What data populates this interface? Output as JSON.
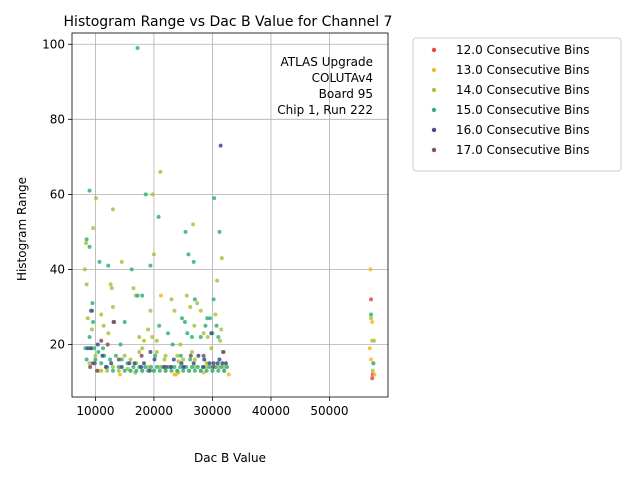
{
  "chart_data": {
    "type": "scatter",
    "title": "Histogram Range vs Dac B Value for Channel 7",
    "xlabel": "Dac B Value",
    "ylabel": "Histogram Range",
    "xlim": [
      6000,
      60000
    ],
    "ylim": [
      6,
      103
    ],
    "xticks": [
      10000,
      20000,
      30000,
      40000,
      50000
    ],
    "xtick_labels": [
      "10000",
      "20000",
      "30000",
      "40000",
      "50000"
    ],
    "yticks": [
      20,
      40,
      60,
      80,
      100
    ],
    "ytick_labels": [
      "20",
      "40",
      "60",
      "80",
      "100"
    ],
    "grid": true,
    "legend_position": "outside-upper-right",
    "annotation": [
      "ATLAS Upgrade",
      "COLUTAv4",
      "Board 95",
      "Chip 1, Run 222"
    ],
    "series": [
      {
        "name": "12.0 Consecutive Bins",
        "color": "#e8474a",
        "points": [
          [
            57100,
            32
          ],
          [
            57300,
            11
          ],
          [
            57400,
            12
          ]
        ]
      },
      {
        "name": "13.0 Consecutive Bins",
        "color": "#f2b934",
        "points": [
          [
            57000,
            40
          ],
          [
            57300,
            26
          ],
          [
            57100,
            16
          ],
          [
            56900,
            19
          ],
          [
            57500,
            15
          ],
          [
            57700,
            12
          ],
          [
            21200,
            33
          ],
          [
            23500,
            12
          ],
          [
            23800,
            12
          ],
          [
            24200,
            12.5
          ],
          [
            14200,
            12
          ],
          [
            28500,
            12.5
          ],
          [
            32800,
            12
          ],
          [
            10500,
            13
          ]
        ]
      },
      {
        "name": "14.0 Consecutive Bins",
        "color": "#a9c340",
        "points": [
          [
            8400,
            47
          ],
          [
            9600,
            51
          ],
          [
            10100,
            59
          ],
          [
            13000,
            56
          ],
          [
            14500,
            42
          ],
          [
            20000,
            44
          ],
          [
            21100,
            66
          ],
          [
            26700,
            52
          ],
          [
            31600,
            43
          ],
          [
            30800,
            37
          ],
          [
            57100,
            27
          ],
          [
            57300,
            21
          ],
          [
            57600,
            21
          ],
          [
            57400,
            13
          ],
          [
            8200,
            40
          ],
          [
            8500,
            36
          ],
          [
            8700,
            27
          ],
          [
            9400,
            24
          ],
          [
            11000,
            28
          ],
          [
            11400,
            25
          ],
          [
            12200,
            23
          ],
          [
            12600,
            36
          ],
          [
            12800,
            35
          ],
          [
            13000,
            30
          ],
          [
            16500,
            35
          ],
          [
            16900,
            33
          ],
          [
            17500,
            22
          ],
          [
            18300,
            21
          ],
          [
            19000,
            24
          ],
          [
            19400,
            29
          ],
          [
            19700,
            22
          ],
          [
            20500,
            21
          ],
          [
            23000,
            32
          ],
          [
            23500,
            29
          ],
          [
            24500,
            20
          ],
          [
            25600,
            33
          ],
          [
            26200,
            30
          ],
          [
            26900,
            25
          ],
          [
            27400,
            31
          ],
          [
            28000,
            29
          ],
          [
            28500,
            23
          ],
          [
            29200,
            22
          ],
          [
            29800,
            19
          ],
          [
            30500,
            28
          ],
          [
            31300,
            21
          ],
          [
            31500,
            24
          ],
          [
            18000,
            19
          ],
          [
            20500,
            18
          ],
          [
            22000,
            17
          ],
          [
            24000,
            17
          ],
          [
            25000,
            16
          ],
          [
            27000,
            16
          ],
          [
            29000,
            15
          ],
          [
            31000,
            14
          ],
          [
            32000,
            14
          ],
          [
            15000,
            17
          ],
          [
            16000,
            16
          ],
          [
            17000,
            15
          ],
          [
            13000,
            14
          ],
          [
            11000,
            13
          ],
          [
            12000,
            13
          ],
          [
            14000,
            13
          ],
          [
            16000,
            13
          ],
          [
            18000,
            13
          ],
          [
            20000,
            13
          ],
          [
            22000,
            13
          ],
          [
            24000,
            13
          ],
          [
            26000,
            13
          ],
          [
            28000,
            13
          ],
          [
            30000,
            13
          ],
          [
            32000,
            13
          ],
          [
            9000,
            15
          ],
          [
            10000,
            17
          ],
          [
            19000,
            14
          ],
          [
            21000,
            14
          ],
          [
            23000,
            14
          ],
          [
            25000,
            14
          ],
          [
            27000,
            14
          ],
          [
            29000,
            14
          ],
          [
            17500,
            18
          ],
          [
            21800,
            16
          ],
          [
            19800,
            60
          ],
          [
            16800,
            12.5
          ],
          [
            15500,
            13.5
          ],
          [
            26500,
            18
          ],
          [
            24200,
            15.5
          ]
        ]
      },
      {
        "name": "15.0 Consecutive Bins",
        "color": "#34b37a",
        "points": [
          [
            17200,
            99
          ],
          [
            9000,
            61
          ],
          [
            8500,
            48
          ],
          [
            9000,
            46
          ],
          [
            10700,
            42
          ],
          [
            12200,
            41
          ],
          [
            18600,
            60
          ],
          [
            20800,
            54
          ],
          [
            25400,
            50
          ],
          [
            25900,
            44
          ],
          [
            26800,
            42
          ],
          [
            30300,
            59
          ],
          [
            31200,
            50
          ],
          [
            30200,
            32
          ],
          [
            57100,
            28
          ],
          [
            57500,
            15
          ],
          [
            9200,
            29
          ],
          [
            9500,
            31
          ],
          [
            9600,
            26
          ],
          [
            16200,
            40
          ],
          [
            17200,
            33
          ],
          [
            19400,
            41
          ],
          [
            24800,
            27
          ],
          [
            25300,
            26
          ],
          [
            25700,
            23
          ],
          [
            26500,
            22
          ],
          [
            27000,
            32
          ],
          [
            28800,
            25
          ],
          [
            29100,
            27
          ],
          [
            29600,
            27
          ],
          [
            30700,
            25
          ],
          [
            31000,
            22
          ],
          [
            9000,
            22
          ],
          [
            9800,
            19
          ],
          [
            10500,
            18
          ],
          [
            11500,
            17
          ],
          [
            12500,
            16
          ],
          [
            13500,
            17
          ],
          [
            14500,
            16
          ],
          [
            15500,
            15
          ],
          [
            16500,
            14
          ],
          [
            17500,
            14
          ],
          [
            18500,
            14
          ],
          [
            19500,
            14
          ],
          [
            20500,
            14
          ],
          [
            21500,
            14
          ],
          [
            22500,
            14
          ],
          [
            23500,
            14
          ],
          [
            24500,
            14
          ],
          [
            25500,
            14
          ],
          [
            26500,
            14
          ],
          [
            27500,
            14
          ],
          [
            28500,
            14
          ],
          [
            29500,
            14
          ],
          [
            30500,
            14
          ],
          [
            31500,
            14
          ],
          [
            32500,
            14
          ],
          [
            8500,
            16
          ],
          [
            10000,
            16
          ],
          [
            11000,
            15
          ],
          [
            12000,
            14
          ],
          [
            13000,
            13
          ],
          [
            14000,
            14
          ],
          [
            15000,
            13
          ],
          [
            16000,
            13
          ],
          [
            17000,
            13
          ],
          [
            18000,
            13
          ],
          [
            19000,
            13
          ],
          [
            20000,
            13
          ],
          [
            21000,
            13
          ],
          [
            22000,
            13
          ],
          [
            23000,
            13
          ],
          [
            24000,
            13
          ],
          [
            25000,
            13
          ],
          [
            26000,
            13
          ],
          [
            27000,
            13
          ],
          [
            28000,
            13
          ],
          [
            29000,
            13
          ],
          [
            30000,
            13
          ],
          [
            31000,
            13
          ],
          [
            32000,
            13
          ],
          [
            8300,
            19
          ],
          [
            11300,
            19
          ],
          [
            14300,
            20
          ],
          [
            15000,
            26
          ],
          [
            18000,
            33
          ],
          [
            20900,
            25
          ],
          [
            22400,
            23
          ],
          [
            23200,
            20
          ],
          [
            28000,
            22
          ],
          [
            30000,
            23
          ],
          [
            31800,
            18
          ],
          [
            9300,
            19
          ],
          [
            24600,
            17
          ],
          [
            26200,
            16
          ],
          [
            20200,
            17
          ]
        ]
      },
      {
        "name": "16.0 Consecutive Bins",
        "color": "#3f4d8a",
        "points": [
          [
            31400,
            73
          ],
          [
            9400,
            29
          ],
          [
            13100,
            26
          ],
          [
            19400,
            18
          ],
          [
            29800,
            23
          ],
          [
            8700,
            19
          ],
          [
            9600,
            15
          ],
          [
            11800,
            14
          ],
          [
            12700,
            15
          ],
          [
            14500,
            14
          ],
          [
            16700,
            15
          ],
          [
            17800,
            14
          ],
          [
            19300,
            13
          ],
          [
            22900,
            14
          ],
          [
            25100,
            14
          ],
          [
            26800,
            15
          ],
          [
            27600,
            17
          ],
          [
            28600,
            16
          ],
          [
            29500,
            15
          ],
          [
            30200,
            15
          ],
          [
            30900,
            15
          ],
          [
            31700,
            15
          ],
          [
            32300,
            15
          ],
          [
            24700,
            15
          ],
          [
            21800,
            14
          ],
          [
            9200,
            19
          ],
          [
            10400,
            20
          ],
          [
            11200,
            17
          ],
          [
            15800,
            15
          ],
          [
            18300,
            15
          ],
          [
            20100,
            16
          ],
          [
            23400,
            16
          ],
          [
            28400,
            14
          ],
          [
            31200,
            16
          ]
        ]
      },
      {
        "name": "17.0 Consecutive Bins",
        "color": "#7f4f5f",
        "points": [
          [
            13200,
            26
          ],
          [
            9900,
            15
          ],
          [
            10300,
            13
          ],
          [
            11000,
            21
          ],
          [
            12100,
            20
          ],
          [
            14000,
            16
          ],
          [
            17900,
            17
          ],
          [
            22100,
            14
          ],
          [
            26300,
            17
          ],
          [
            28500,
            17
          ],
          [
            30100,
            14
          ],
          [
            31900,
            18
          ],
          [
            9100,
            14
          ]
        ]
      }
    ]
  }
}
